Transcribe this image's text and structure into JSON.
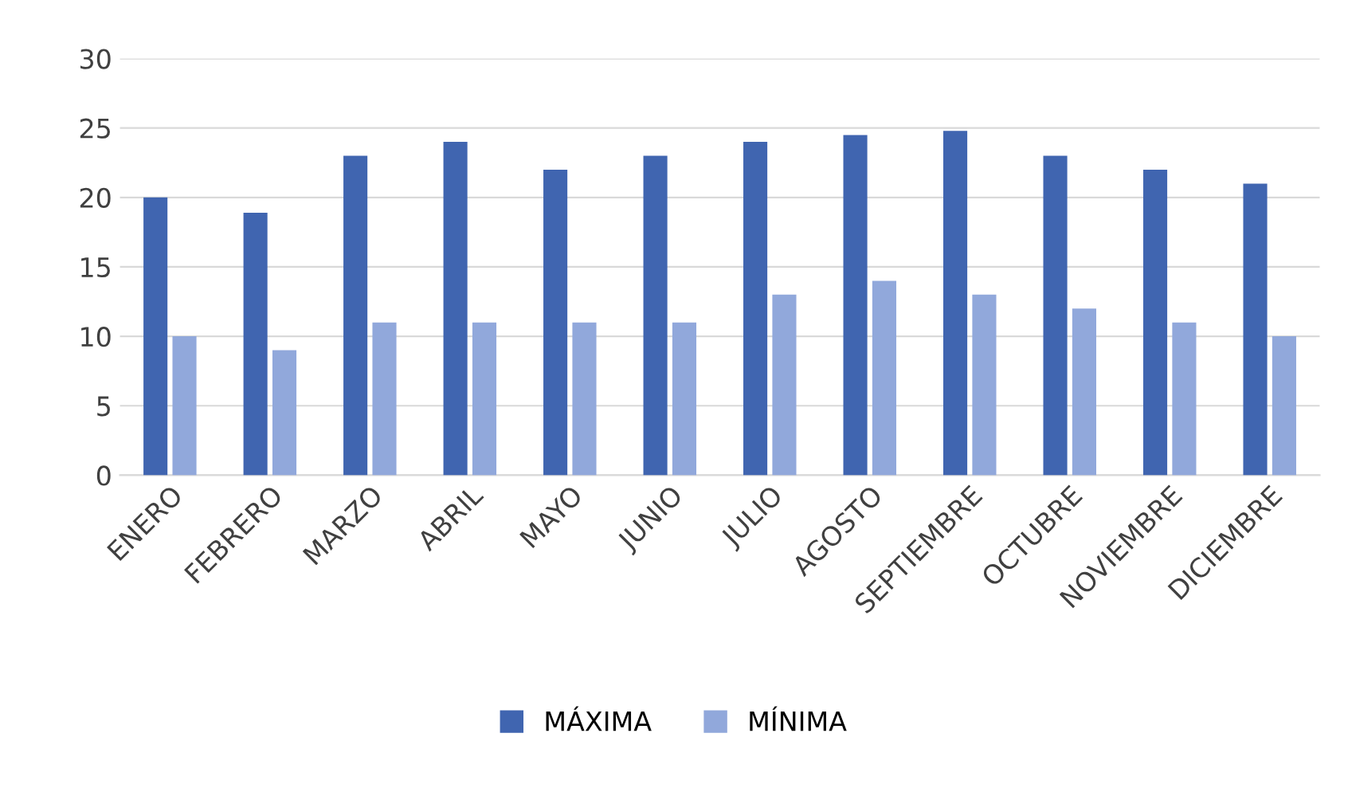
{
  "chart_data": {
    "type": "bar",
    "categories": [
      "ENERO",
      "FEBRERO",
      "MARZO",
      "ABRIL",
      "MAYO",
      "JUNIO",
      "JULIO",
      "AGOSTO",
      "SEPTIEMBRE",
      "OCTUBRE",
      "NOVIEMBRE",
      "DICIEMBRE"
    ],
    "series": [
      {
        "name": "MÁXIMA",
        "color": "#4065b0",
        "values": [
          20,
          18.9,
          23,
          24,
          22,
          23,
          24,
          24.5,
          24.8,
          23,
          22,
          21
        ]
      },
      {
        "name": "MÍNIMA",
        "color": "#91a8db",
        "values": [
          10,
          9,
          11,
          11,
          11,
          11,
          13,
          14,
          13,
          12,
          11,
          10
        ]
      }
    ],
    "ylim": [
      0,
      30
    ],
    "yticks": [
      0,
      5,
      10,
      15,
      20,
      25,
      30
    ],
    "grid": "y",
    "legend": "bottom"
  }
}
